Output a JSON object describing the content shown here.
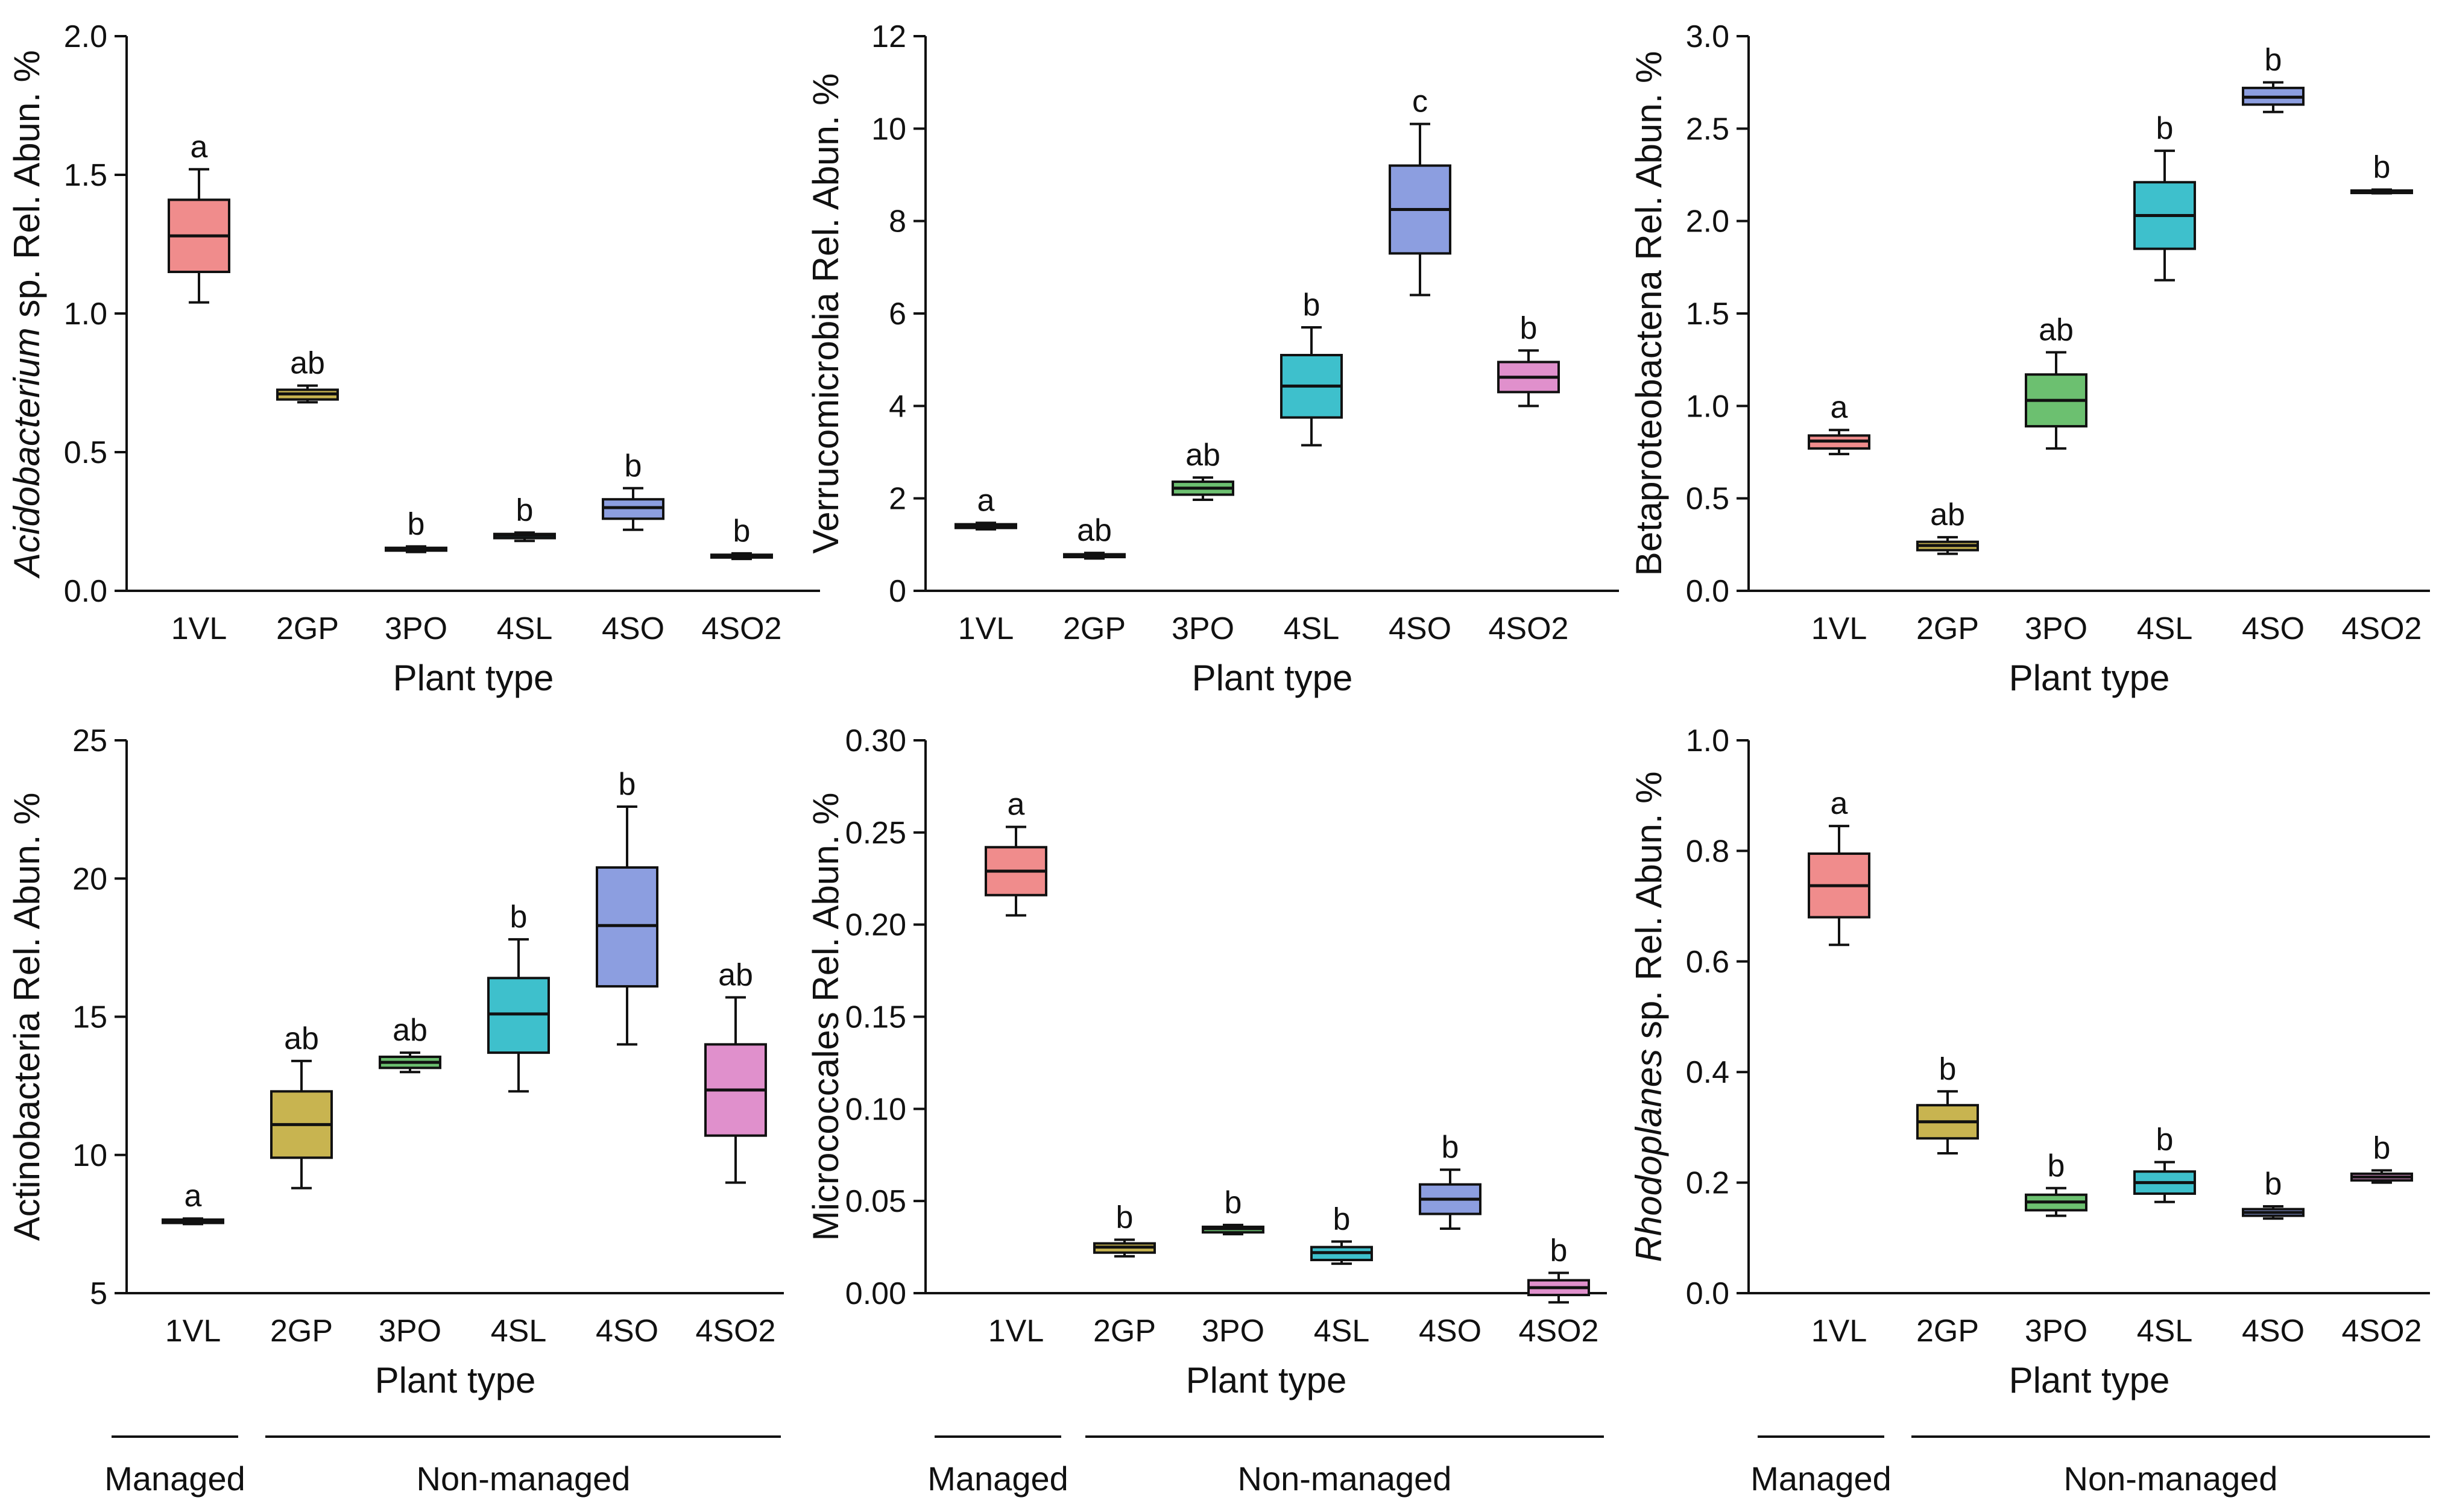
{
  "chart_data": [
    {
      "type": "box",
      "ylabel_prefix": "Acidobacterium",
      "ylabel_suffix": " sp. Rel. Abun. %",
      "ylabel_italic_prefix": true,
      "xlabel": "Plant type",
      "ylim": [
        0,
        2.0
      ],
      "yticks": [
        "0.0",
        "0.5",
        "1.0",
        "1.5",
        "2.0"
      ],
      "categories": [
        "1VL",
        "2GP",
        "3PO",
        "4SL",
        "4SO",
        "4SO2"
      ],
      "boxes": [
        {
          "min": 1.04,
          "q1": 1.15,
          "median": 1.28,
          "q3": 1.41,
          "max": 1.52,
          "sig": "a",
          "color": "#f08c8c"
        },
        {
          "min": 0.68,
          "q1": 0.69,
          "median": 0.71,
          "q3": 0.725,
          "max": 0.74,
          "sig": "ab",
          "color": "#c8b450"
        },
        {
          "min": 0.14,
          "q1": 0.145,
          "median": 0.15,
          "q3": 0.155,
          "max": 0.16,
          "sig": "b",
          "color": "#6cc070"
        },
        {
          "min": 0.18,
          "q1": 0.19,
          "median": 0.2,
          "q3": 0.205,
          "max": 0.21,
          "sig": "b",
          "color": "#3ec0cc"
        },
        {
          "min": 0.22,
          "q1": 0.26,
          "median": 0.3,
          "q3": 0.33,
          "max": 0.37,
          "sig": "b",
          "color": "#8c9ee0"
        },
        {
          "min": 0.115,
          "q1": 0.12,
          "median": 0.125,
          "q3": 0.13,
          "max": 0.135,
          "sig": "b",
          "color": "#e090cc"
        }
      ]
    },
    {
      "type": "box",
      "ylabel_prefix": "",
      "ylabel_suffix": "Verrucomicrobia Rel. Abun. %",
      "ylabel_italic_prefix": false,
      "xlabel": "Plant type",
      "ylim": [
        0,
        12
      ],
      "yticks": [
        "0",
        "2",
        "4",
        "6",
        "8",
        "10",
        "12"
      ],
      "categories": [
        "1VL",
        "2GP",
        "3PO",
        "4SL",
        "4SO",
        "4SO2"
      ],
      "boxes": [
        {
          "min": 1.33,
          "q1": 1.36,
          "median": 1.4,
          "q3": 1.44,
          "max": 1.47,
          "sig": "a",
          "color": "#f08c8c"
        },
        {
          "min": 0.7,
          "q1": 0.73,
          "median": 0.76,
          "q3": 0.79,
          "max": 0.82,
          "sig": "ab",
          "color": "#c8b450"
        },
        {
          "min": 1.97,
          "q1": 2.08,
          "median": 2.22,
          "q3": 2.36,
          "max": 2.45,
          "sig": "ab",
          "color": "#6cc070"
        },
        {
          "min": 3.15,
          "q1": 3.75,
          "median": 4.43,
          "q3": 5.1,
          "max": 5.7,
          "sig": "b",
          "color": "#3ec0cc"
        },
        {
          "min": 6.4,
          "q1": 7.3,
          "median": 8.25,
          "q3": 9.2,
          "max": 10.1,
          "sig": "c",
          "color": "#8c9ee0"
        },
        {
          "min": 4.0,
          "q1": 4.3,
          "median": 4.62,
          "q3": 4.95,
          "max": 5.2,
          "sig": "b",
          "color": "#e090cc"
        }
      ]
    },
    {
      "type": "box",
      "ylabel_prefix": "",
      "ylabel_suffix": "Betaproteobactena Rel. Abun. %",
      "ylabel_italic_prefix": false,
      "xlabel": "Plant type",
      "ylim": [
        0,
        3.0
      ],
      "yticks": [
        "0.0",
        "0.5",
        "1.0",
        "1.5",
        "2.0",
        "2.5",
        "3.0"
      ],
      "categories": [
        "1VL",
        "2GP",
        "3PO",
        "4SL",
        "4SO",
        "4SO2"
      ],
      "boxes": [
        {
          "min": 0.74,
          "q1": 0.77,
          "median": 0.81,
          "q3": 0.84,
          "max": 0.87,
          "sig": "a",
          "color": "#f08c8c"
        },
        {
          "min": 0.2,
          "q1": 0.22,
          "median": 0.245,
          "q3": 0.265,
          "max": 0.29,
          "sig": "ab",
          "color": "#c8b450"
        },
        {
          "min": 0.77,
          "q1": 0.89,
          "median": 1.03,
          "q3": 1.17,
          "max": 1.29,
          "sig": "ab",
          "color": "#6cc070"
        },
        {
          "min": 1.68,
          "q1": 1.85,
          "median": 2.03,
          "q3": 2.21,
          "max": 2.38,
          "sig": "b",
          "color": "#3ec0cc"
        },
        {
          "min": 2.59,
          "q1": 2.63,
          "median": 2.67,
          "q3": 2.72,
          "max": 2.75,
          "sig": "b",
          "color": "#8c9ee0"
        },
        {
          "min": 2.15,
          "q1": 2.155,
          "median": 2.16,
          "q3": 2.165,
          "max": 2.17,
          "sig": "b",
          "color": "#e090cc"
        }
      ]
    },
    {
      "type": "box",
      "ylabel_prefix": "",
      "ylabel_suffix": "Actinobacteria Rel. Abun. %",
      "ylabel_italic_prefix": false,
      "xlabel": "Plant type",
      "ylim": [
        5,
        25
      ],
      "yticks": [
        "5",
        "10",
        "15",
        "20",
        "25"
      ],
      "categories": [
        "1VL",
        "2GP",
        "3PO",
        "4SL",
        "4SO",
        "4SO2"
      ],
      "boxes": [
        {
          "min": 7.5,
          "q1": 7.54,
          "median": 7.6,
          "q3": 7.66,
          "max": 7.7,
          "sig": "a",
          "color": "#f08c8c"
        },
        {
          "min": 8.8,
          "q1": 9.9,
          "median": 11.1,
          "q3": 12.3,
          "max": 13.4,
          "sig": "ab",
          "color": "#c8b450"
        },
        {
          "min": 13.0,
          "q1": 13.15,
          "median": 13.35,
          "q3": 13.55,
          "max": 13.7,
          "sig": "ab",
          "color": "#6cc070"
        },
        {
          "min": 12.3,
          "q1": 13.7,
          "median": 15.1,
          "q3": 16.4,
          "max": 17.8,
          "sig": "b",
          "color": "#3ec0cc"
        },
        {
          "min": 14.0,
          "q1": 16.1,
          "median": 18.3,
          "q3": 20.4,
          "max": 22.6,
          "sig": "b",
          "color": "#8c9ee0"
        },
        {
          "min": 9.0,
          "q1": 10.7,
          "median": 12.35,
          "q3": 14.0,
          "max": 15.7,
          "sig": "ab",
          "color": "#e090cc"
        }
      ]
    },
    {
      "type": "box",
      "ylabel_prefix": "",
      "ylabel_suffix": "Micrococcales Rel. Abun. %",
      "ylabel_italic_prefix": false,
      "xlabel": "Plant type",
      "ylim": [
        0,
        0.3
      ],
      "yticks": [
        "0.00",
        "0.05",
        "0.10",
        "0.15",
        "0.20",
        "0.25",
        "0.30"
      ],
      "categories": [
        "1VL",
        "2GP",
        "3PO",
        "4SL",
        "4SO",
        "4SO2"
      ],
      "boxes": [
        {
          "min": 0.205,
          "q1": 0.216,
          "median": 0.229,
          "q3": 0.242,
          "max": 0.253,
          "sig": "a",
          "color": "#f08c8c"
        },
        {
          "min": 0.02,
          "q1": 0.022,
          "median": 0.025,
          "q3": 0.027,
          "max": 0.029,
          "sig": "b",
          "color": "#c8b450"
        },
        {
          "min": 0.032,
          "q1": 0.033,
          "median": 0.035,
          "q3": 0.036,
          "max": 0.037,
          "sig": "b",
          "color": "#6cc070"
        },
        {
          "min": 0.016,
          "q1": 0.018,
          "median": 0.022,
          "q3": 0.025,
          "max": 0.028,
          "sig": "b",
          "color": "#3ec0cc"
        },
        {
          "min": 0.035,
          "q1": 0.043,
          "median": 0.051,
          "q3": 0.059,
          "max": 0.067,
          "sig": "b",
          "color": "#8c9ee0"
        },
        {
          "min": -0.005,
          "q1": -0.001,
          "median": 0.003,
          "q3": 0.007,
          "max": 0.011,
          "sig": "b",
          "color": "#e090cc"
        }
      ]
    },
    {
      "type": "box",
      "ylabel_prefix": "Rhodoplanes",
      "ylabel_suffix": " sp. Rel. Abun. %",
      "ylabel_italic_prefix": true,
      "xlabel": "Plant type",
      "ylim": [
        0,
        1.0
      ],
      "yticks": [
        "0.0",
        "0.2",
        "0.4",
        "0.6",
        "0.8",
        "1.0"
      ],
      "categories": [
        "1VL",
        "2GP",
        "3PO",
        "4SL",
        "4SO",
        "4SO2"
      ],
      "boxes": [
        {
          "min": 0.63,
          "q1": 0.68,
          "median": 0.737,
          "q3": 0.795,
          "max": 0.845,
          "sig": "a",
          "color": "#f08c8c"
        },
        {
          "min": 0.253,
          "q1": 0.28,
          "median": 0.31,
          "q3": 0.34,
          "max": 0.365,
          "sig": "b",
          "color": "#c8b450"
        },
        {
          "min": 0.14,
          "q1": 0.15,
          "median": 0.165,
          "q3": 0.178,
          "max": 0.19,
          "sig": "b",
          "color": "#6cc070"
        },
        {
          "min": 0.165,
          "q1": 0.18,
          "median": 0.2,
          "q3": 0.22,
          "max": 0.237,
          "sig": "b",
          "color": "#3ec0cc"
        },
        {
          "min": 0.135,
          "q1": 0.14,
          "median": 0.146,
          "q3": 0.152,
          "max": 0.157,
          "sig": "b",
          "color": "#8c9ee0"
        },
        {
          "min": 0.2,
          "q1": 0.204,
          "median": 0.21,
          "q3": 0.216,
          "max": 0.222,
          "sig": "b",
          "color": "#e090cc"
        }
      ]
    }
  ],
  "groups": {
    "managed_label": "Managed",
    "non_managed_label": "Non-managed"
  }
}
